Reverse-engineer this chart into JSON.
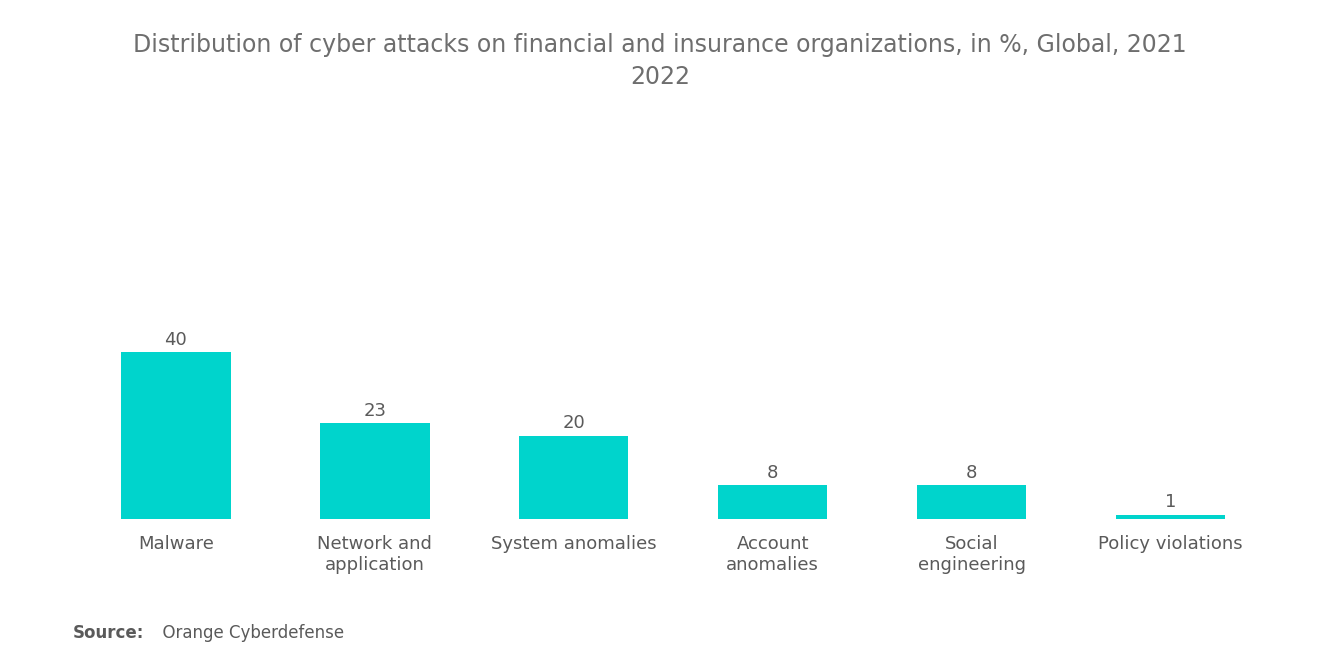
{
  "title": "Distribution of cyber attacks on financial and insurance organizations, in %, Global, 2021\n2022",
  "categories": [
    "Malware",
    "Network and\napplication",
    "System anomalies",
    "Account\nanomalies",
    "Social\nengineering",
    "Policy violations"
  ],
  "values": [
    40,
    23,
    20,
    8,
    8,
    1
  ],
  "bar_color": "#00D4CC",
  "background_color": "#ffffff",
  "title_color": "#6e6e6e",
  "label_color": "#5a5a5a",
  "value_color": "#5a5a5a",
  "source_bold": "Source:",
  "source_text": "  Orange Cyberdefense",
  "title_fontsize": 17,
  "label_fontsize": 13,
  "value_fontsize": 13,
  "source_fontsize": 12,
  "ylim_max": 80,
  "bar_width": 0.55
}
